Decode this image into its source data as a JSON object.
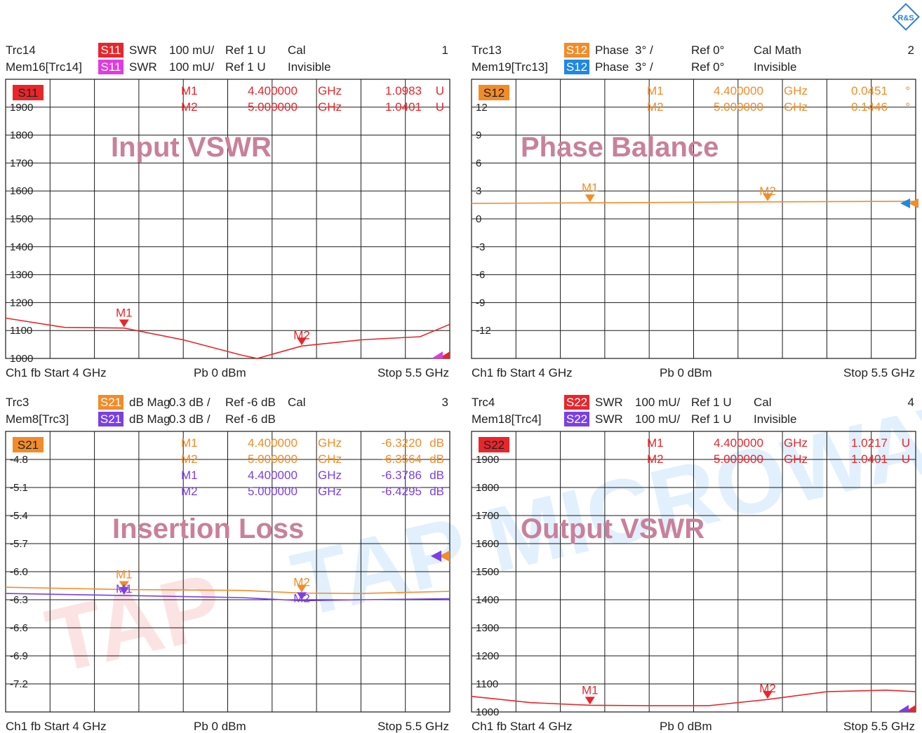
{
  "logo_text": "R&S",
  "watermark": {
    "brand": "TAP MICROWAVE",
    "logo": "TAP"
  },
  "colors": {
    "orange": "#f28c28",
    "red": "#e8262b",
    "blue": "#1e88e5",
    "magenta": "#e13be0",
    "purple": "#7b3fe6",
    "title": "#c9809a",
    "grid": "#1a1a1a"
  },
  "panels": [
    {
      "number": "1",
      "header": {
        "rows": [
          {
            "name": "Trc14",
            "badge": "S11",
            "badge_color": "#e8262b",
            "format": "SWR",
            "scale": "100 mU/",
            "ref": "Ref 1 U",
            "extra": "Cal"
          },
          {
            "name": "Mem16[Trc14]",
            "badge": "S11",
            "badge_color": "#e13be0",
            "format": "SWR",
            "scale": "100 mU/",
            "ref": "Ref 1 U",
            "extra": "Invisible"
          }
        ]
      },
      "tag": {
        "text": "S11",
        "color": "#e8262b"
      },
      "title": "Input VSWR",
      "markers": [
        {
          "name": "M1",
          "freq": "4.400000",
          "unit": "GHz",
          "value": "1.0983",
          "vunit": "U",
          "color": "#e8262b"
        },
        {
          "name": "M2",
          "freq": "5.000000",
          "unit": "GHz",
          "value": "1.0401",
          "vunit": "U",
          "color": "#e8262b"
        }
      ],
      "footer": {
        "left": "Ch1  fb  Start  4 GHz",
        "mid": "Pb   0 dBm",
        "right": "Stop  5.5 GHz"
      }
    },
    {
      "number": "2",
      "header": {
        "rows": [
          {
            "name": "Trc13",
            "badge": "S12",
            "badge_color": "#f28c28",
            "format": "Phase",
            "scale": "3° /",
            "ref": "Ref 0°",
            "extra": "Cal Math"
          },
          {
            "name": "Mem19[Trc13]",
            "badge": "S12",
            "badge_color": "#1e88e5",
            "format": "Phase",
            "scale": "3° /",
            "ref": "Ref 0°",
            "extra": "Invisible"
          }
        ]
      },
      "tag": {
        "text": "S12",
        "color": "#f28c28"
      },
      "title": "Phase Balance",
      "markers": [
        {
          "name": "M1",
          "freq": "4.400000",
          "unit": "GHz",
          "value": "0.0451",
          "vunit": "°",
          "color": "#f28c28"
        },
        {
          "name": "M2",
          "freq": "5.000000",
          "unit": "GHz",
          "value": "0.1446",
          "vunit": "°",
          "color": "#f28c28"
        }
      ],
      "footer": {
        "left": "Ch1  fb  Start  4 GHz",
        "mid": "Pb   0 dBm",
        "right": "Stop  5.5 GHz"
      }
    },
    {
      "number": "3",
      "header": {
        "rows": [
          {
            "name": "Trc3",
            "badge": "S21",
            "badge_color": "#f28c28",
            "format": "dB Mag",
            "scale": "0.3 dB /",
            "ref": "Ref -6 dB",
            "extra": "Cal"
          },
          {
            "name": "Mem8[Trc3]",
            "badge": "S21",
            "badge_color": "#7b3fe6",
            "format": "dB Mag",
            "scale": "0.3 dB /",
            "ref": "Ref -6 dB",
            "extra": ""
          }
        ]
      },
      "tag": {
        "text": "S21",
        "color": "#f28c28"
      },
      "title": "Insertion Loss",
      "markers": [
        {
          "name": "M1",
          "freq": "4.400000",
          "unit": "GHz",
          "value": "-6.3220",
          "vunit": "dB",
          "color": "#f28c28"
        },
        {
          "name": "M2",
          "freq": "5.000000",
          "unit": "GHz",
          "value": "-6.3564",
          "vunit": "dB",
          "color": "#f28c28"
        },
        {
          "name": "M1",
          "freq": "4.400000",
          "unit": "GHz",
          "value": "-6.3786",
          "vunit": "dB",
          "color": "#7b3fe6"
        },
        {
          "name": "M2",
          "freq": "5.000000",
          "unit": "GHz",
          "value": "-6.4295",
          "vunit": "dB",
          "color": "#7b3fe6"
        }
      ],
      "footer": {
        "left": "Ch1  fb  Start  4 GHz",
        "mid": "Pb   0 dBm",
        "right": "Stop  5.5 GHz"
      }
    },
    {
      "number": "4",
      "header": {
        "rows": [
          {
            "name": "Trc4",
            "badge": "S22",
            "badge_color": "#e8262b",
            "format": "SWR",
            "scale": "100 mU/",
            "ref": "Ref 1 U",
            "extra": "Cal"
          },
          {
            "name": "Mem18[Trc4]",
            "badge": "S22",
            "badge_color": "#7b3fe6",
            "format": "SWR",
            "scale": "100 mU/",
            "ref": "Ref 1 U",
            "extra": "Invisible"
          }
        ]
      },
      "tag": {
        "text": "S22",
        "color": "#e8262b"
      },
      "title": "Output VSWR",
      "markers": [
        {
          "name": "M1",
          "freq": "4.400000",
          "unit": "GHz",
          "value": "1.0217",
          "vunit": "U",
          "color": "#e8262b"
        },
        {
          "name": "M2",
          "freq": "5.000000",
          "unit": "GHz",
          "value": "1.0401",
          "vunit": "U",
          "color": "#e8262b"
        }
      ],
      "footer": {
        "left": "Ch1  fb  Start  4 GHz",
        "mid": "Pb   0 dBm",
        "right": "Stop  5.5 GHz"
      }
    }
  ],
  "chart_data": [
    {
      "type": "line",
      "title": "Input VSWR",
      "xlim": [
        4,
        5.5
      ],
      "ylim": [
        1.0,
        1.9
      ],
      "ytick_labels": [
        "1900",
        "1800",
        "1700",
        "1600",
        "1500",
        "1400",
        "1300",
        "1200",
        "1100",
        "1000"
      ],
      "grid": true,
      "series": [
        {
          "name": "S11",
          "color": "#e8262b",
          "x": [
            4.0,
            4.2,
            4.4,
            4.6,
            4.8,
            4.85,
            5.0,
            5.2,
            5.4,
            5.5
          ],
          "y": [
            1.13,
            1.1,
            1.098,
            1.06,
            1.01,
            1.0,
            1.04,
            1.06,
            1.07,
            1.11
          ]
        }
      ],
      "marker_points": [
        {
          "label": "M1",
          "x": 4.4,
          "y": 1.0983,
          "color": "#e8262b"
        },
        {
          "label": "M2",
          "x": 5.0,
          "y": 1.0401,
          "color": "#e8262b"
        }
      ]
    },
    {
      "type": "line",
      "title": "Phase Balance",
      "xlim": [
        4,
        5.5
      ],
      "ylim": [
        -15,
        12
      ],
      "ytick_labels": [
        "12",
        "9",
        "6",
        "3",
        "0",
        "-3",
        "-6",
        "-9",
        "-12"
      ],
      "grid": true,
      "series": [
        {
          "name": "S12",
          "color": "#f28c28",
          "x": [
            4.0,
            4.4,
            5.0,
            5.5
          ],
          "y": [
            0.0,
            0.0451,
            0.1446,
            0.2
          ]
        }
      ],
      "marker_points": [
        {
          "label": "M1",
          "x": 4.4,
          "y": 0.0451,
          "color": "#f28c28"
        },
        {
          "label": "M2",
          "x": 5.0,
          "y": 0.1446,
          "color": "#f28c28"
        }
      ]
    },
    {
      "type": "line",
      "title": "Insertion Loss",
      "xlim": [
        4,
        5.5
      ],
      "ylim": [
        -7.5,
        -4.8
      ],
      "ytick_labels": [
        "-4.8",
        "-5.1",
        "-5.4",
        "-5.7",
        "-6.0",
        "-6.3",
        "-6.6",
        "-6.9",
        "-7.2"
      ],
      "grid": true,
      "series": [
        {
          "name": "S21",
          "color": "#f28c28",
          "x": [
            4.0,
            4.4,
            4.8,
            5.0,
            5.2,
            5.5
          ],
          "y": [
            -6.3,
            -6.322,
            -6.33,
            -6.356,
            -6.36,
            -6.34
          ]
        },
        {
          "name": "S21",
          "color": "#7b3fe6",
          "x": [
            4.0,
            4.4,
            4.8,
            5.0,
            5.2,
            5.5
          ],
          "y": [
            -6.36,
            -6.379,
            -6.4,
            -6.43,
            -6.42,
            -6.41
          ]
        }
      ],
      "marker_points": [
        {
          "label": "M1",
          "x": 4.4,
          "y": -6.322,
          "color": "#f28c28"
        },
        {
          "label": "M2",
          "x": 5.0,
          "y": -6.3564,
          "color": "#f28c28"
        },
        {
          "label": "M1",
          "x": 4.4,
          "y": -6.3786,
          "color": "#7b3fe6"
        },
        {
          "label": "M2",
          "x": 5.0,
          "y": -6.4295,
          "color": "#7b3fe6"
        }
      ]
    },
    {
      "type": "line",
      "title": "Output VSWR",
      "xlim": [
        4,
        5.5
      ],
      "ylim": [
        1.0,
        1.9
      ],
      "ytick_labels": [
        "1900",
        "1800",
        "1700",
        "1600",
        "1500",
        "1400",
        "1300",
        "1200",
        "1100",
        "1000"
      ],
      "grid": true,
      "series": [
        {
          "name": "S22",
          "color": "#e8262b",
          "x": [
            4.0,
            4.2,
            4.4,
            4.6,
            4.8,
            5.0,
            5.2,
            5.4,
            5.5
          ],
          "y": [
            1.05,
            1.03,
            1.0217,
            1.02,
            1.02,
            1.04,
            1.065,
            1.07,
            1.065
          ]
        }
      ],
      "marker_points": [
        {
          "label": "M1",
          "x": 4.4,
          "y": 1.0217,
          "color": "#e8262b"
        },
        {
          "label": "M2",
          "x": 5.0,
          "y": 1.0401,
          "color": "#e8262b"
        }
      ]
    }
  ]
}
